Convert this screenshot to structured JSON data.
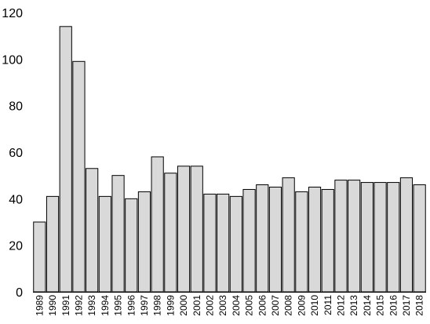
{
  "chart_data": {
    "type": "bar",
    "categories": [
      "1989",
      "1990",
      "1991",
      "1992",
      "1993",
      "1994",
      "1995",
      "1996",
      "1997",
      "1998",
      "1999",
      "2000",
      "2001",
      "2002",
      "2003",
      "2004",
      "2005",
      "2006",
      "2007",
      "2008",
      "2009",
      "2010",
      "2011",
      "2012",
      "2013",
      "2014",
      "2015",
      "2016",
      "2017",
      "2018"
    ],
    "values": [
      30,
      41,
      114,
      99,
      53,
      41,
      50,
      40,
      43,
      58,
      51,
      54,
      54,
      42,
      42,
      41,
      44,
      46,
      45,
      49,
      43,
      45,
      44,
      48,
      48,
      47,
      47,
      47,
      49,
      46
    ],
    "title": "",
    "xlabel": "",
    "ylabel": "",
    "ylim": [
      0,
      120
    ],
    "yticks": [
      0,
      20,
      40,
      60,
      80,
      100,
      120
    ],
    "grid": false,
    "legend": "none",
    "bar_color": "#d9d9d9",
    "bar_edge_color": "#000000"
  }
}
